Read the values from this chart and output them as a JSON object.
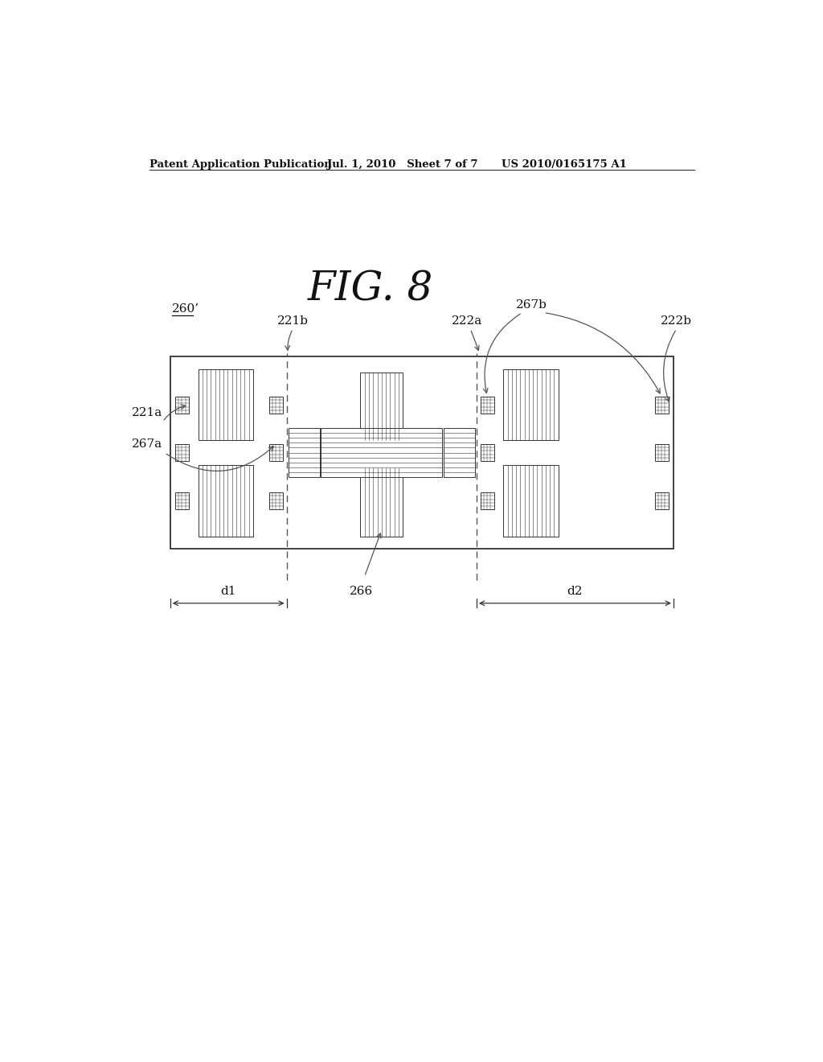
{
  "fig_title": "FIG. 8",
  "patent_left": "Patent Application Publication",
  "patent_mid": "Jul. 1, 2010   Sheet 7 of 7",
  "patent_right": "US 2010/0165175 A1",
  "bg_color": "#ffffff",
  "label_260": "260’",
  "label_221a": "221a",
  "label_221b": "221b",
  "label_222a": "222a",
  "label_222b": "222b",
  "label_267a": "267a",
  "label_267b": "267b",
  "label_266": "266",
  "label_d1": "d1",
  "label_d2": "d2"
}
